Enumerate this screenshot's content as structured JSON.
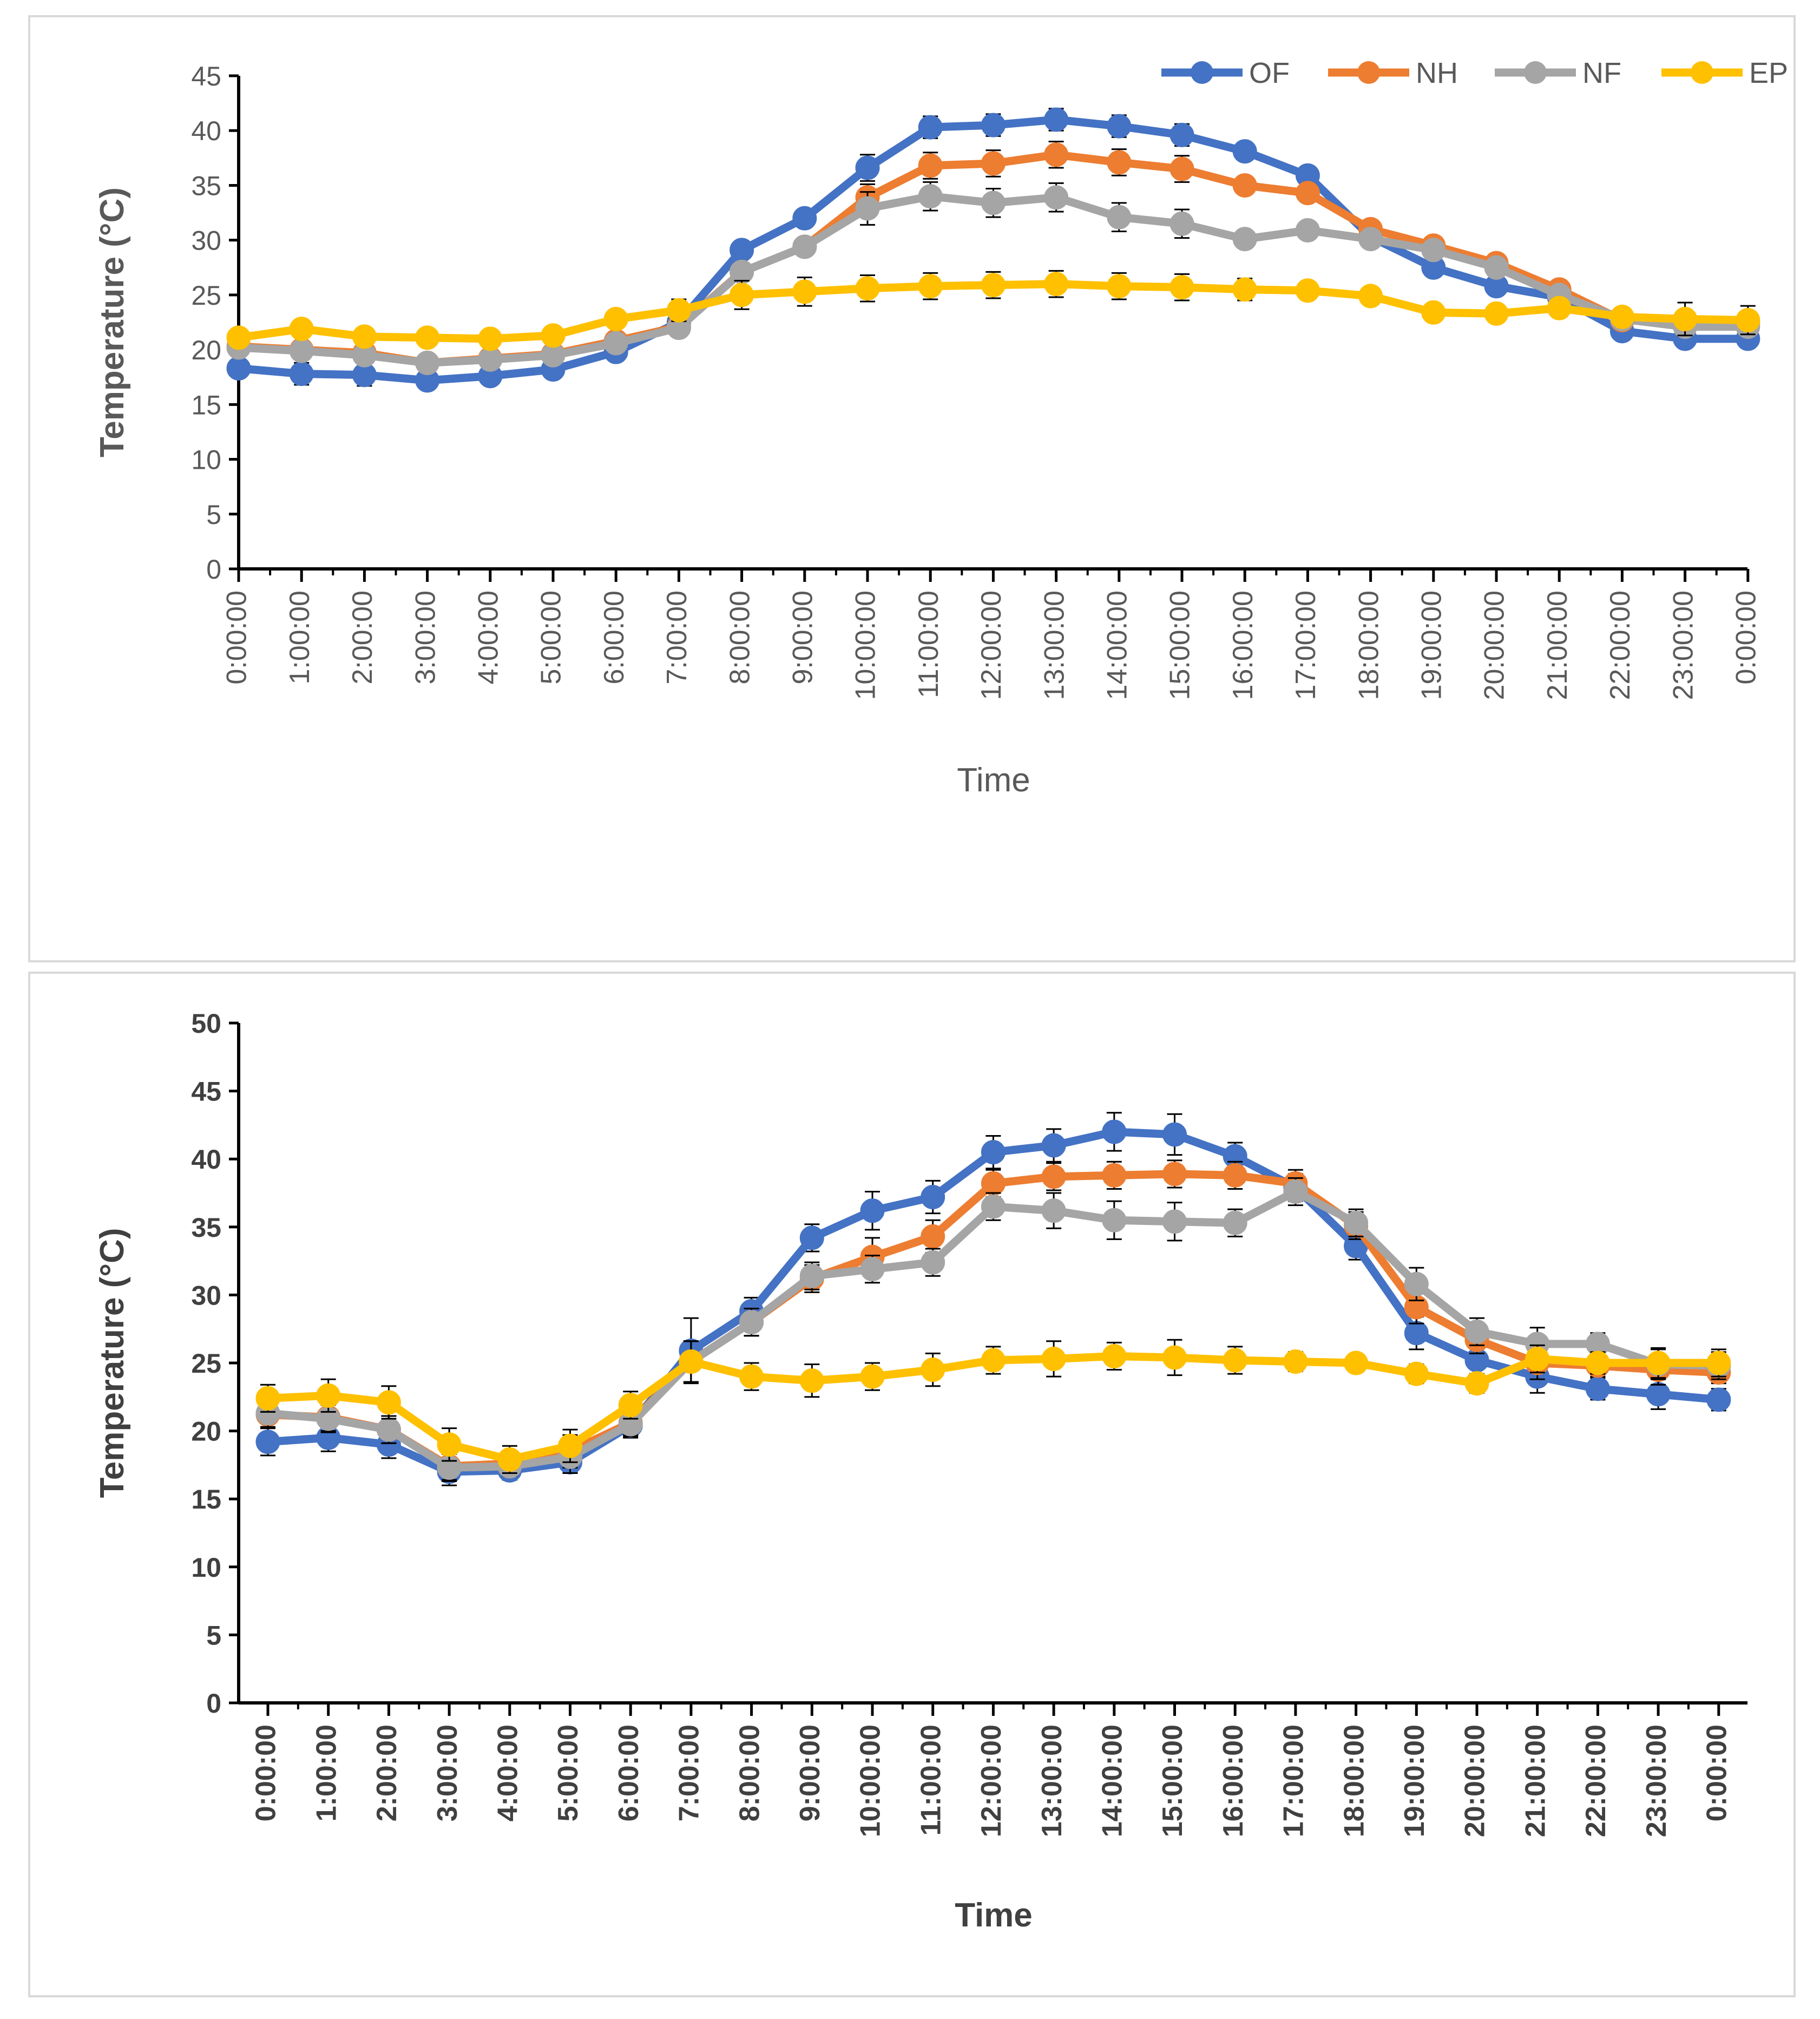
{
  "colors": {
    "OF": "#4472C4",
    "NH": "#ED7D31",
    "NF": "#A5A5A5",
    "EP": "#FFC000",
    "axis": "#000000",
    "text": "#595959"
  },
  "chart_data": [
    {
      "type": "line",
      "title": "",
      "xlabel": "Time",
      "ylabel": "Temperature (°C)",
      "ylim": [
        0,
        45
      ],
      "ytick_step": 5,
      "yticks": [
        "0",
        "5",
        "10",
        "15",
        "20",
        "25",
        "30",
        "35",
        "40",
        "45"
      ],
      "grid": false,
      "legend": "top-right",
      "categories": [
        "0:00:00",
        "1:00:00",
        "2:00:00",
        "3:00:00",
        "4:00:00",
        "5:00:00",
        "6:00:00",
        "7:00:00",
        "8:00:00",
        "9:00:00",
        "10:00:00",
        "11:00:00",
        "12:00:00",
        "13:00:00",
        "14:00:00",
        "15:00:00",
        "16:00:00",
        "17:00:00",
        "18:00:00",
        "19:00:00",
        "20:00:00",
        "21:00:00",
        "22:00:00",
        "23:00:00",
        "0:00:00"
      ],
      "series": [
        {
          "name": "OF",
          "values": [
            18.3,
            17.8,
            17.7,
            17.2,
            17.6,
            18.2,
            19.8,
            22.5,
            29.1,
            32.0,
            36.6,
            40.3,
            40.5,
            41.0,
            40.4,
            39.6,
            38.1,
            35.9,
            30.3,
            27.5,
            25.8,
            24.8,
            21.7,
            21.0,
            21.0
          ],
          "error": [
            0.7,
            1.0,
            1.0,
            0.7,
            0.7,
            0.7,
            0.7,
            0.7,
            0.8,
            0.8,
            1.2,
            1.0,
            1.0,
            1.0,
            1.0,
            1.0,
            0.8,
            0.8,
            0.8,
            0.8,
            0.8,
            0.8,
            0.8,
            0.8,
            0.8
          ]
        },
        {
          "name": "NH",
          "values": [
            20.3,
            20.0,
            19.7,
            18.8,
            19.2,
            19.6,
            20.8,
            22.1,
            27.1,
            29.4,
            33.9,
            36.8,
            37.0,
            37.8,
            37.1,
            36.5,
            35.0,
            34.3,
            31.0,
            29.5,
            27.9,
            25.5,
            22.7,
            22.5,
            22.5
          ],
          "error": [
            0.7,
            0.7,
            0.7,
            0.7,
            0.7,
            0.7,
            0.7,
            0.7,
            0.8,
            0.8,
            1.2,
            1.2,
            1.2,
            1.2,
            1.2,
            1.2,
            0.8,
            0.8,
            0.8,
            0.8,
            0.8,
            0.8,
            0.8,
            0.8,
            0.8
          ]
        },
        {
          "name": "NF",
          "values": [
            20.2,
            19.9,
            19.5,
            18.8,
            19.1,
            19.5,
            20.6,
            22.0,
            27.1,
            29.4,
            32.9,
            34.0,
            33.4,
            33.9,
            32.1,
            31.5,
            30.1,
            30.9,
            30.1,
            29.1,
            27.5,
            25.0,
            22.8,
            22.1,
            22.1
          ],
          "error": [
            0.7,
            0.7,
            0.7,
            0.7,
            0.7,
            0.7,
            0.7,
            0.7,
            0.8,
            0.8,
            1.5,
            1.3,
            1.3,
            1.3,
            1.3,
            1.3,
            0.8,
            0.8,
            0.8,
            0.8,
            0.8,
            0.8,
            0.8,
            0.8,
            0.8
          ]
        },
        {
          "name": "EP",
          "values": [
            21.1,
            21.9,
            21.2,
            21.1,
            21.0,
            21.3,
            22.8,
            23.6,
            25.0,
            25.3,
            25.6,
            25.8,
            25.9,
            26.0,
            25.8,
            25.7,
            25.5,
            25.4,
            24.9,
            23.4,
            23.3,
            23.8,
            23.0,
            22.8,
            22.7
          ],
          "error": [
            0.7,
            0.7,
            0.7,
            0.7,
            0.7,
            0.7,
            0.7,
            1.0,
            1.3,
            1.3,
            1.2,
            1.2,
            1.2,
            1.2,
            1.2,
            1.2,
            1.0,
            0.8,
            0.8,
            0.8,
            0.8,
            0.8,
            0.8,
            1.5,
            1.3
          ]
        }
      ]
    },
    {
      "type": "line",
      "title": "",
      "xlabel": "Time",
      "ylabel": "Temperature (°C)",
      "ylim": [
        0,
        50
      ],
      "ytick_step": 5,
      "yticks": [
        "0",
        "5",
        "10",
        "15",
        "20",
        "25",
        "30",
        "35",
        "40",
        "45",
        "50"
      ],
      "grid": false,
      "legend": "none",
      "categories": [
        "0:00:00",
        "1:00:00",
        "2:00:00",
        "3:00:00",
        "4:00:00",
        "5:00:00",
        "6:00:00",
        "7:00:00",
        "8:00:00",
        "9:00:00",
        "10:00:00",
        "11:00:00",
        "12:00:00",
        "13:00:00",
        "14:00:00",
        "15:00:00",
        "16:00:00",
        "17:00:00",
        "18:00:00",
        "19:00:00",
        "20:00:00",
        "21:00:00",
        "22:00:00",
        "23:00:00",
        "0:00:00"
      ],
      "series": [
        {
          "name": "OF",
          "values": [
            19.2,
            19.5,
            19.0,
            17.0,
            17.1,
            17.7,
            20.4,
            25.9,
            28.8,
            34.2,
            36.2,
            37.2,
            40.5,
            41.0,
            42.0,
            41.8,
            40.2,
            37.9,
            33.6,
            27.2,
            25.2,
            24.0,
            23.1,
            22.7,
            22.3
          ],
          "error": [
            1.0,
            1.0,
            1.0,
            1.0,
            0.7,
            0.7,
            0.9,
            2.4,
            1.0,
            1.0,
            1.4,
            1.2,
            1.2,
            1.2,
            1.4,
            1.5,
            1.0,
            1.0,
            1.0,
            1.2,
            1.0,
            1.2,
            0.8,
            1.1,
            0.8
          ]
        },
        {
          "name": "NH",
          "values": [
            21.2,
            21.0,
            20.1,
            17.4,
            17.6,
            18.5,
            20.6,
            25.1,
            28.0,
            31.2,
            32.8,
            34.3,
            38.2,
            38.7,
            38.8,
            38.9,
            38.8,
            38.2,
            35.1,
            29.1,
            26.7,
            25.0,
            24.8,
            24.5,
            24.3
          ],
          "error": [
            1.0,
            1.0,
            1.0,
            1.0,
            0.7,
            1.2,
            0.9,
            1.5,
            1.0,
            1.0,
            1.4,
            1.2,
            1.0,
            1.0,
            1.0,
            1.0,
            1.0,
            1.0,
            1.0,
            1.2,
            1.0,
            1.2,
            0.8,
            1.1,
            0.8
          ]
        },
        {
          "name": "NF",
          "values": [
            21.3,
            20.9,
            20.1,
            17.3,
            17.4,
            18.1,
            20.5,
            25.1,
            28.0,
            31.4,
            31.9,
            32.4,
            36.5,
            36.2,
            35.5,
            35.4,
            35.3,
            37.6,
            35.3,
            30.8,
            27.3,
            26.4,
            26.4,
            24.9,
            24.8
          ],
          "error": [
            1.0,
            1.0,
            1.0,
            1.0,
            0.7,
            1.2,
            0.9,
            1.5,
            1.0,
            1.0,
            1.0,
            1.0,
            1.0,
            1.3,
            1.4,
            1.4,
            1.0,
            1.0,
            1.0,
            1.2,
            1.0,
            1.2,
            0.8,
            1.1,
            1.0
          ]
        },
        {
          "name": "EP",
          "values": [
            22.4,
            22.6,
            22.1,
            19.0,
            17.9,
            18.9,
            21.9,
            25.1,
            24.0,
            23.7,
            24.0,
            24.5,
            25.2,
            25.3,
            25.5,
            25.4,
            25.2,
            25.1,
            25.0,
            24.2,
            23.5,
            25.3,
            25.0,
            25.0,
            25.0
          ],
          "error": [
            1.0,
            1.2,
            1.2,
            1.2,
            1.0,
            1.2,
            1.0,
            1.5,
            1.0,
            1.2,
            1.0,
            1.2,
            1.0,
            1.3,
            1.0,
            1.3,
            1.0,
            0.7,
            0.5,
            0.7,
            0.7,
            1.0,
            0.8,
            1.1,
            1.0
          ]
        }
      ]
    }
  ]
}
